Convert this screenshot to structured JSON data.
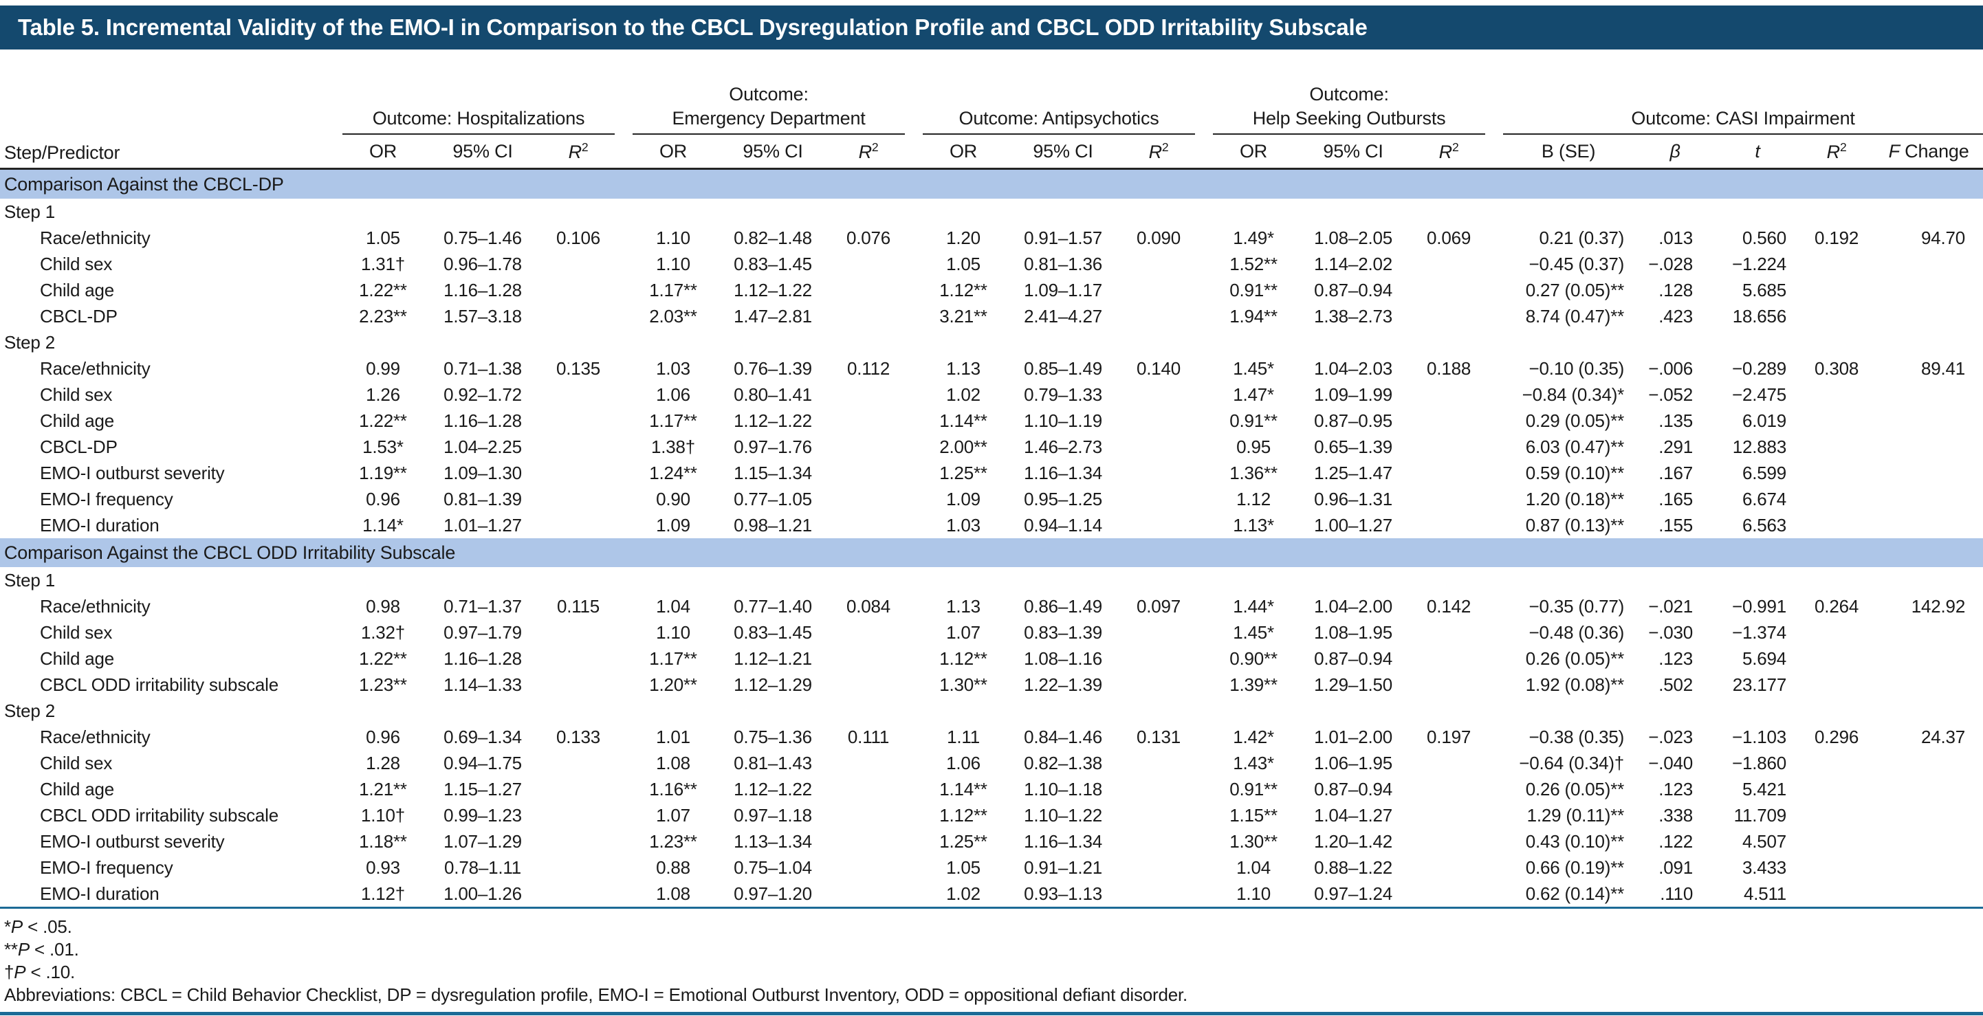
{
  "title": "Table 5. Incremental Validity of the EMO-I in Comparison to the CBCL Dysregulation Profile and CBCL ODD Irritability Subscale",
  "colors": {
    "title_bar": "#14496e",
    "section_band": "#aec6e8",
    "rule_blue": "#1c6a96",
    "header_rule": "#242424"
  },
  "header": {
    "step_predictor": "Step/Predictor",
    "groups": [
      {
        "line1": "Outcome: Hospitalizations",
        "line2": "",
        "cols": [
          "OR",
          "95% CI",
          "R2"
        ]
      },
      {
        "line1": "Outcome:",
        "line2": "Emergency Department",
        "cols": [
          "OR",
          "95% CI",
          "R2"
        ]
      },
      {
        "line1": "Outcome: Antipsychotics",
        "line2": "",
        "cols": [
          "OR",
          "95% CI",
          "R2"
        ]
      },
      {
        "line1": "Outcome:",
        "line2": "Help Seeking Outbursts",
        "cols": [
          "OR",
          "95% CI",
          "R2"
        ]
      },
      {
        "line1": "Outcome: CASI Impairment",
        "line2": "",
        "cols": [
          "B (SE)",
          "β",
          "t",
          "R2",
          "F Change"
        ]
      }
    ]
  },
  "sections": [
    {
      "label": "Comparison Against the CBCL-DP",
      "steps": [
        {
          "label": "Step 1",
          "rows": [
            {
              "predictor": "Race/ethnicity",
              "values": [
                "1.05",
                "0.75–1.46",
                "0.106",
                "1.10",
                "0.82–1.48",
                "0.076",
                "1.20",
                "0.91–1.57",
                "0.090",
                "1.49*",
                "1.08–2.05",
                "0.069",
                "0.21 (0.37)",
                ".013",
                "0.560",
                "0.192",
                "94.70"
              ]
            },
            {
              "predictor": "Child sex",
              "values": [
                "1.31†",
                "0.96–1.78",
                "",
                "1.10",
                "0.83–1.45",
                "",
                "1.05",
                "0.81–1.36",
                "",
                "1.52**",
                "1.14–2.02",
                "",
                "−0.45 (0.37)",
                "−.028",
                "−1.224",
                "",
                ""
              ]
            },
            {
              "predictor": "Child age",
              "values": [
                "1.22**",
                "1.16–1.28",
                "",
                "1.17**",
                "1.12–1.22",
                "",
                "1.12**",
                "1.09–1.17",
                "",
                "0.91**",
                "0.87–0.94",
                "",
                "0.27 (0.05)**",
                ".128",
                "5.685",
                "",
                ""
              ]
            },
            {
              "predictor": "CBCL-DP",
              "values": [
                "2.23**",
                "1.57–3.18",
                "",
                "2.03**",
                "1.47–2.81",
                "",
                "3.21**",
                "2.41–4.27",
                "",
                "1.94**",
                "1.38–2.73",
                "",
                "8.74 (0.47)**",
                ".423",
                "18.656",
                "",
                ""
              ]
            }
          ]
        },
        {
          "label": "Step 2",
          "rows": [
            {
              "predictor": "Race/ethnicity",
              "values": [
                "0.99",
                "0.71–1.38",
                "0.135",
                "1.03",
                "0.76–1.39",
                "0.112",
                "1.13",
                "0.85–1.49",
                "0.140",
                "1.45*",
                "1.04–2.03",
                "0.188",
                "−0.10 (0.35)",
                "−.006",
                "−0.289",
                "0.308",
                "89.41"
              ]
            },
            {
              "predictor": "Child sex",
              "values": [
                "1.26",
                "0.92–1.72",
                "",
                "1.06",
                "0.80–1.41",
                "",
                "1.02",
                "0.79–1.33",
                "",
                "1.47*",
                "1.09–1.99",
                "",
                "−0.84 (0.34)*",
                "−.052",
                "−2.475",
                "",
                ""
              ]
            },
            {
              "predictor": "Child age",
              "values": [
                "1.22**",
                "1.16–1.28",
                "",
                "1.17**",
                "1.12–1.22",
                "",
                "1.14**",
                "1.10–1.19",
                "",
                "0.91**",
                "0.87–0.95",
                "",
                "0.29 (0.05)**",
                ".135",
                "6.019",
                "",
                ""
              ]
            },
            {
              "predictor": "CBCL-DP",
              "values": [
                "1.53*",
                "1.04–2.25",
                "",
                "1.38†",
                "0.97–1.76",
                "",
                "2.00**",
                "1.46–2.73",
                "",
                "0.95",
                "0.65–1.39",
                "",
                "6.03 (0.47)**",
                ".291",
                "12.883",
                "",
                ""
              ]
            },
            {
              "predictor": "EMO-I outburst severity",
              "values": [
                "1.19**",
                "1.09–1.30",
                "",
                "1.24**",
                "1.15–1.34",
                "",
                "1.25**",
                "1.16–1.34",
                "",
                "1.36**",
                "1.25–1.47",
                "",
                "0.59 (0.10)**",
                ".167",
                "6.599",
                "",
                ""
              ]
            },
            {
              "predictor": "EMO-I frequency",
              "values": [
                "0.96",
                "0.81–1.39",
                "",
                "0.90",
                "0.77–1.05",
                "",
                "1.09",
                "0.95–1.25",
                "",
                "1.12",
                "0.96–1.31",
                "",
                "1.20 (0.18)**",
                ".165",
                "6.674",
                "",
                ""
              ]
            },
            {
              "predictor": "EMO-I duration",
              "values": [
                "1.14*",
                "1.01–1.27",
                "",
                "1.09",
                "0.98–1.21",
                "",
                "1.03",
                "0.94–1.14",
                "",
                "1.13*",
                "1.00–1.27",
                "",
                "0.87 (0.13)**",
                ".155",
                "6.563",
                "",
                ""
              ]
            }
          ]
        }
      ]
    },
    {
      "label": "Comparison Against the CBCL ODD Irritability Subscale",
      "steps": [
        {
          "label": "Step 1",
          "rows": [
            {
              "predictor": "Race/ethnicity",
              "values": [
                "0.98",
                "0.71–1.37",
                "0.115",
                "1.04",
                "0.77–1.40",
                "0.084",
                "1.13",
                "0.86–1.49",
                "0.097",
                "1.44*",
                "1.04–2.00",
                "0.142",
                "−0.35 (0.77)",
                "−.021",
                "−0.991",
                "0.264",
                "142.92"
              ]
            },
            {
              "predictor": "Child sex",
              "values": [
                "1.32†",
                "0.97–1.79",
                "",
                "1.10",
                "0.83–1.45",
                "",
                "1.07",
                "0.83–1.39",
                "",
                "1.45*",
                "1.08–1.95",
                "",
                "−0.48 (0.36)",
                "−.030",
                "−1.374",
                "",
                ""
              ]
            },
            {
              "predictor": "Child age",
              "values": [
                "1.22**",
                "1.16–1.28",
                "",
                "1.17**",
                "1.12–1.21",
                "",
                "1.12**",
                "1.08–1.16",
                "",
                "0.90**",
                "0.87–0.94",
                "",
                "0.26 (0.05)**",
                ".123",
                "5.694",
                "",
                ""
              ]
            },
            {
              "predictor": "CBCL ODD irritability subscale",
              "values": [
                "1.23**",
                "1.14–1.33",
                "",
                "1.20**",
                "1.12–1.29",
                "",
                "1.30**",
                "1.22–1.39",
                "",
                "1.39**",
                "1.29–1.50",
                "",
                "1.92 (0.08)**",
                ".502",
                "23.177",
                "",
                ""
              ]
            }
          ]
        },
        {
          "label": "Step 2",
          "rows": [
            {
              "predictor": "Race/ethnicity",
              "values": [
                "0.96",
                "0.69–1.34",
                "0.133",
                "1.01",
                "0.75–1.36",
                "0.111",
                "1.11",
                "0.84–1.46",
                "0.131",
                "1.42*",
                "1.01–2.00",
                "0.197",
                "−0.38 (0.35)",
                "−.023",
                "−1.103",
                "0.296",
                "24.37"
              ]
            },
            {
              "predictor": "Child sex",
              "values": [
                "1.28",
                "0.94–1.75",
                "",
                "1.08",
                "0.81–1.43",
                "",
                "1.06",
                "0.82–1.38",
                "",
                "1.43*",
                "1.06–1.95",
                "",
                "−0.64 (0.34)†",
                "−.040",
                "−1.860",
                "",
                ""
              ]
            },
            {
              "predictor": "Child age",
              "values": [
                "1.21**",
                "1.15–1.27",
                "",
                "1.16**",
                "1.12–1.22",
                "",
                "1.14**",
                "1.10–1.18",
                "",
                "0.91**",
                "0.87–0.94",
                "",
                "0.26 (0.05)**",
                ".123",
                "5.421",
                "",
                ""
              ]
            },
            {
              "predictor": "CBCL ODD irritability subscale",
              "values": [
                "1.10†",
                "0.99–1.23",
                "",
                "1.07",
                "0.97–1.18",
                "",
                "1.12**",
                "1.10–1.22",
                "",
                "1.15**",
                "1.04–1.27",
                "",
                "1.29 (0.11)**",
                ".338",
                "11.709",
                "",
                ""
              ]
            },
            {
              "predictor": "EMO-I outburst severity",
              "values": [
                "1.18**",
                "1.07–1.29",
                "",
                "1.23**",
                "1.13–1.34",
                "",
                "1.25**",
                "1.16–1.34",
                "",
                "1.30**",
                "1.20–1.42",
                "",
                "0.43 (0.10)**",
                ".122",
                "4.507",
                "",
                ""
              ]
            },
            {
              "predictor": "EMO-I frequency",
              "values": [
                "0.93",
                "0.78–1.11",
                "",
                "0.88",
                "0.75–1.04",
                "",
                "1.05",
                "0.91–1.21",
                "",
                "1.04",
                "0.88–1.22",
                "",
                "0.66 (0.19)**",
                ".091",
                "3.433",
                "",
                ""
              ]
            },
            {
              "predictor": "EMO-I duration",
              "values": [
                "1.12†",
                "1.00–1.26",
                "",
                "1.08",
                "0.97–1.20",
                "",
                "1.02",
                "0.93–1.13",
                "",
                "1.10",
                "0.97–1.24",
                "",
                "0.62 (0.14)**",
                ".110",
                "4.511",
                "",
                ""
              ]
            }
          ]
        }
      ]
    }
  ],
  "footnotes": [
    "*P < .05.",
    "**P < .01.",
    "†P < .10.",
    "Abbreviations: CBCL = Child Behavior Checklist, DP = dysregulation profile, EMO-I = Emotional Outburst Inventory, ODD = oppositional defiant disorder."
  ]
}
